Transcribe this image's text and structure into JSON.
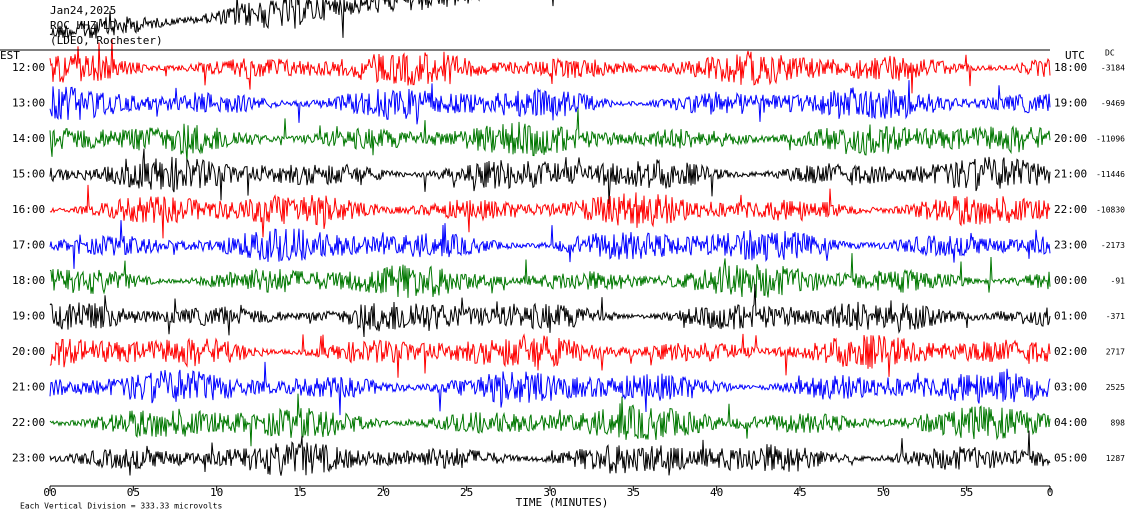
{
  "header": {
    "date": "Jan24,2025",
    "station": "ROC HHZ LD --",
    "network": "(LDEO, Rochester)"
  },
  "left_axis": {
    "label": "EST",
    "ticks": [
      "12:00",
      "13:00",
      "14:00",
      "15:00",
      "16:00",
      "17:00",
      "18:00",
      "19:00",
      "20:00",
      "21:00",
      "22:00",
      "23:00"
    ]
  },
  "right_axis": {
    "label": "UTC",
    "ticks": [
      "18:00",
      "19:00",
      "20:00",
      "21:00",
      "22:00",
      "23:00",
      "00:00",
      "01:00",
      "02:00",
      "03:00",
      "04:00",
      "05:00"
    ]
  },
  "dc": {
    "label": "DC",
    "values": [
      -3184,
      -9469,
      -11096,
      -11446,
      -10830,
      -2173,
      -91,
      -371,
      2717,
      2525,
      898,
      1287
    ]
  },
  "x_axis": {
    "label": "TIME (MINUTES)",
    "ticks": [
      "00",
      "05",
      "10",
      "15",
      "20",
      "25",
      "30",
      "35",
      "40",
      "45",
      "50",
      "55",
      "0"
    ]
  },
  "footer": "Each Vertical Division =  333.33 microvolts"
}
